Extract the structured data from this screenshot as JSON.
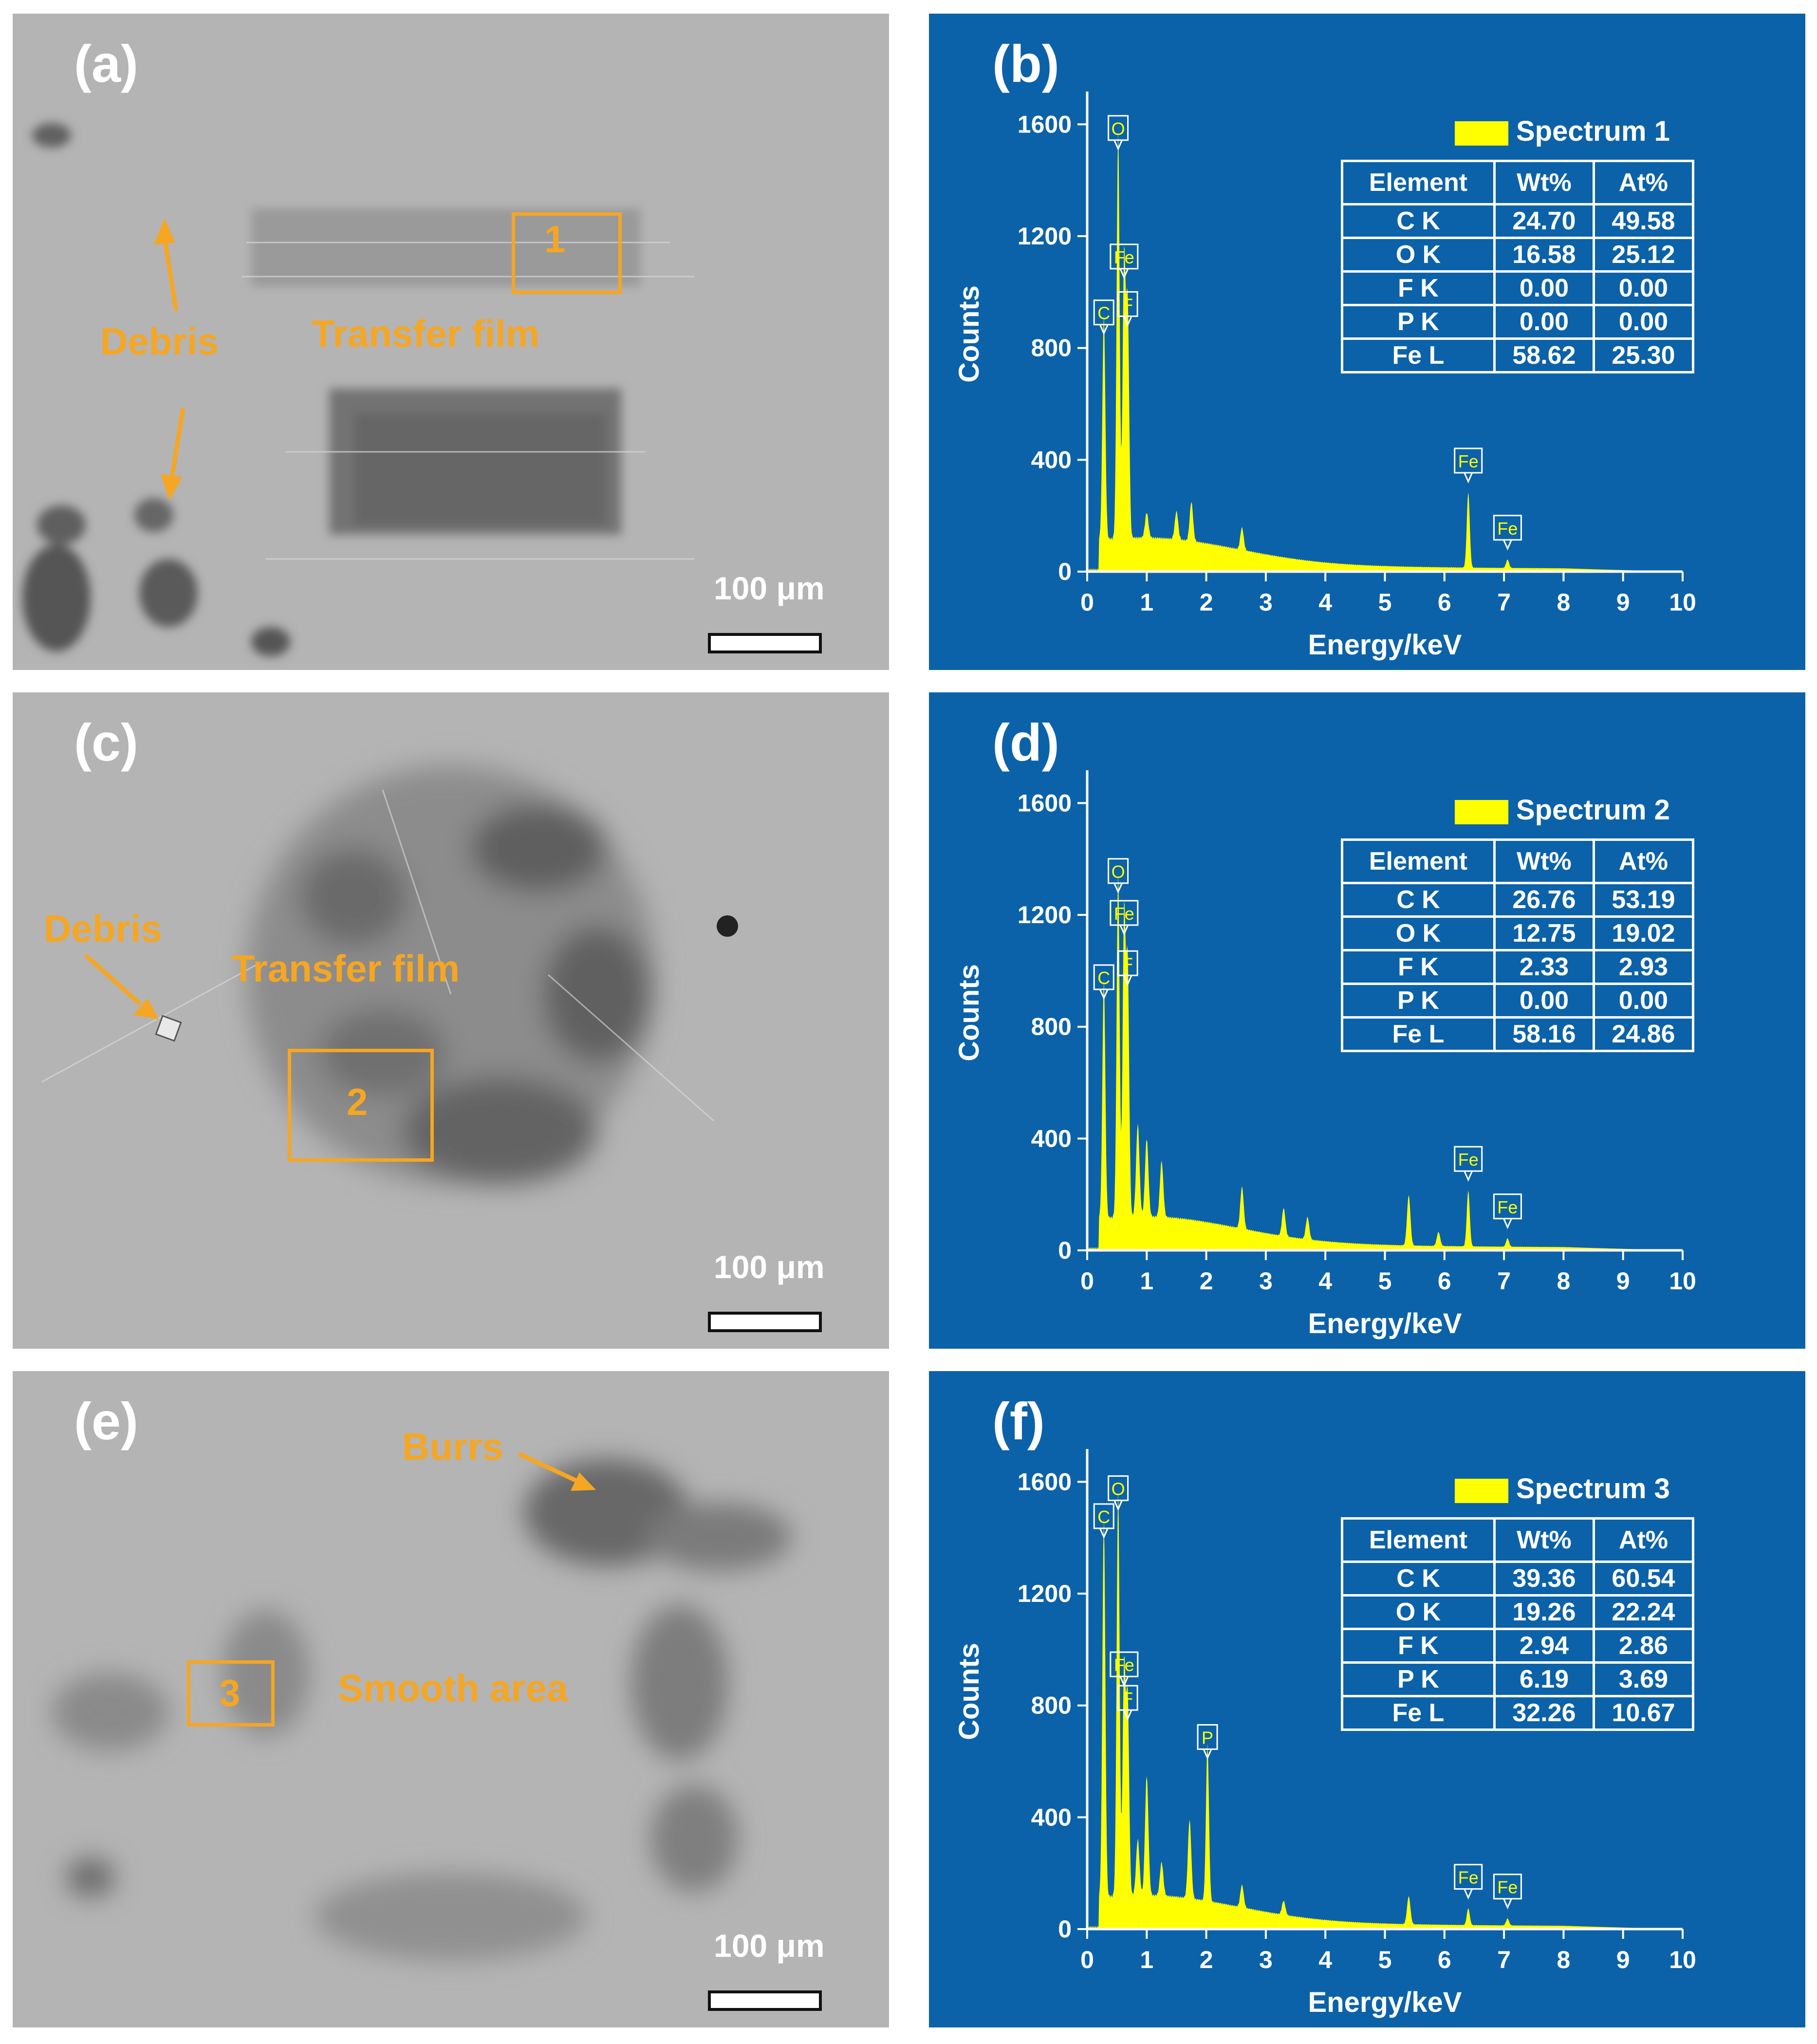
{
  "colors": {
    "eds_bg": "#0b62a9",
    "spectrum": "#ffff00",
    "annotation": "#f5a623",
    "sem_bg": "#b4b4b4"
  },
  "sem_panels": [
    {
      "label": "(a)",
      "scale": "100 μm",
      "box_number": "1",
      "annotations": [
        "Debris",
        "Transfer film"
      ]
    },
    {
      "label": "(c)",
      "scale": "100 μm",
      "box_number": "2",
      "annotations": [
        "Debris",
        "Transfer film"
      ]
    },
    {
      "label": "(e)",
      "scale": "100 μm",
      "box_number": "3",
      "annotations": [
        "Burrs",
        "Smooth area"
      ]
    }
  ],
  "chart_data": [
    {
      "type": "area",
      "panel_label": "(b)",
      "legend": "Spectrum 1",
      "xlabel": "Energy/keV",
      "ylabel": "Counts",
      "xlim": [
        0,
        10
      ],
      "ylim": [
        0,
        1700
      ],
      "x_ticks": [
        "0",
        "1",
        "2",
        "3",
        "4",
        "5",
        "6",
        "7",
        "8",
        "9",
        "10"
      ],
      "y_ticks": [
        "0",
        "400",
        "800",
        "1200",
        "1600"
      ],
      "peaks": [
        {
          "x": 0.28,
          "y": 800,
          "label": "C"
        },
        {
          "x": 0.52,
          "y": 1460,
          "label": "O"
        },
        {
          "x": 0.62,
          "y": 1000,
          "label": "Fe"
        },
        {
          "x": 0.68,
          "y": 830,
          "label": "F"
        },
        {
          "x": 6.4,
          "y": 270,
          "label": "Fe"
        },
        {
          "x": 7.06,
          "y": 30,
          "label": "Fe"
        }
      ],
      "minor_peaks": [
        [
          1.0,
          90
        ],
        [
          1.5,
          100
        ],
        [
          1.75,
          140
        ],
        [
          2.6,
          80
        ]
      ],
      "table": {
        "headers": [
          "Element",
          "Wt%",
          "At%"
        ],
        "rows": [
          [
            "C K",
            "24.70",
            "49.58"
          ],
          [
            "O K",
            "16.58",
            "25.12"
          ],
          [
            "F K",
            "0.00",
            "0.00"
          ],
          [
            "P K",
            "0.00",
            "0.00"
          ],
          [
            "Fe L",
            "58.62",
            "25.30"
          ]
        ]
      }
    },
    {
      "type": "area",
      "panel_label": "(d)",
      "legend": "Spectrum 2",
      "xlabel": "Energy/keV",
      "ylabel": "Counts",
      "xlim": [
        0,
        10
      ],
      "ylim": [
        0,
        1700
      ],
      "x_ticks": [
        "0",
        "1",
        "2",
        "3",
        "4",
        "5",
        "6",
        "7",
        "8",
        "9",
        "10"
      ],
      "y_ticks": [
        "0",
        "400",
        "800",
        "1200",
        "1600"
      ],
      "peaks": [
        {
          "x": 0.28,
          "y": 850,
          "label": "C"
        },
        {
          "x": 0.52,
          "y": 1230,
          "label": "O"
        },
        {
          "x": 0.62,
          "y": 1080,
          "label": "Fe"
        },
        {
          "x": 0.68,
          "y": 900,
          "label": "F"
        },
        {
          "x": 6.4,
          "y": 200,
          "label": "Fe"
        },
        {
          "x": 7.06,
          "y": 30,
          "label": "Fe"
        }
      ],
      "minor_peaks": [
        [
          0.85,
          330
        ],
        [
          1.0,
          280
        ],
        [
          1.25,
          200
        ],
        [
          2.6,
          150
        ],
        [
          3.3,
          100
        ],
        [
          3.7,
          80
        ],
        [
          5.4,
          180
        ],
        [
          5.9,
          50
        ]
      ],
      "table": {
        "headers": [
          "Element",
          "Wt%",
          "At%"
        ],
        "rows": [
          [
            "C K",
            "26.76",
            "53.19"
          ],
          [
            "O K",
            "12.75",
            "19.02"
          ],
          [
            "F K",
            "2.33",
            "2.93"
          ],
          [
            "P K",
            "0.00",
            "0.00"
          ],
          [
            "Fe L",
            "58.16",
            "24.86"
          ]
        ]
      }
    },
    {
      "type": "area",
      "panel_label": "(f)",
      "legend": "Spectrum 3",
      "xlabel": "Energy/keV",
      "ylabel": "Counts",
      "xlim": [
        0,
        10
      ],
      "ylim": [
        0,
        1700
      ],
      "x_ticks": [
        "0",
        "1",
        "2",
        "3",
        "4",
        "5",
        "6",
        "7",
        "8",
        "9",
        "10"
      ],
      "y_ticks": [
        "0",
        "400",
        "800",
        "1200",
        "1600"
      ],
      "peaks": [
        {
          "x": 0.28,
          "y": 1350,
          "label": "C"
        },
        {
          "x": 0.52,
          "y": 1450,
          "label": "O"
        },
        {
          "x": 0.62,
          "y": 820,
          "label": "Fe"
        },
        {
          "x": 0.68,
          "y": 700,
          "label": "F"
        },
        {
          "x": 2.02,
          "y": 560,
          "label": "P"
        },
        {
          "x": 6.4,
          "y": 60,
          "label": "Fe"
        },
        {
          "x": 7.06,
          "y": 25,
          "label": "Fe"
        }
      ],
      "minor_peaks": [
        [
          0.85,
          200
        ],
        [
          1.0,
          430
        ],
        [
          1.25,
          120
        ],
        [
          1.72,
          280
        ],
        [
          2.6,
          80
        ],
        [
          3.3,
          50
        ],
        [
          5.4,
          100
        ]
      ],
      "table": {
        "headers": [
          "Element",
          "Wt%",
          "At%"
        ],
        "rows": [
          [
            "C K",
            "39.36",
            "60.54"
          ],
          [
            "O K",
            "19.26",
            "22.24"
          ],
          [
            "F K",
            "2.94",
            "2.86"
          ],
          [
            "P K",
            "6.19",
            "3.69"
          ],
          [
            "Fe L",
            "32.26",
            "10.67"
          ]
        ]
      }
    }
  ]
}
